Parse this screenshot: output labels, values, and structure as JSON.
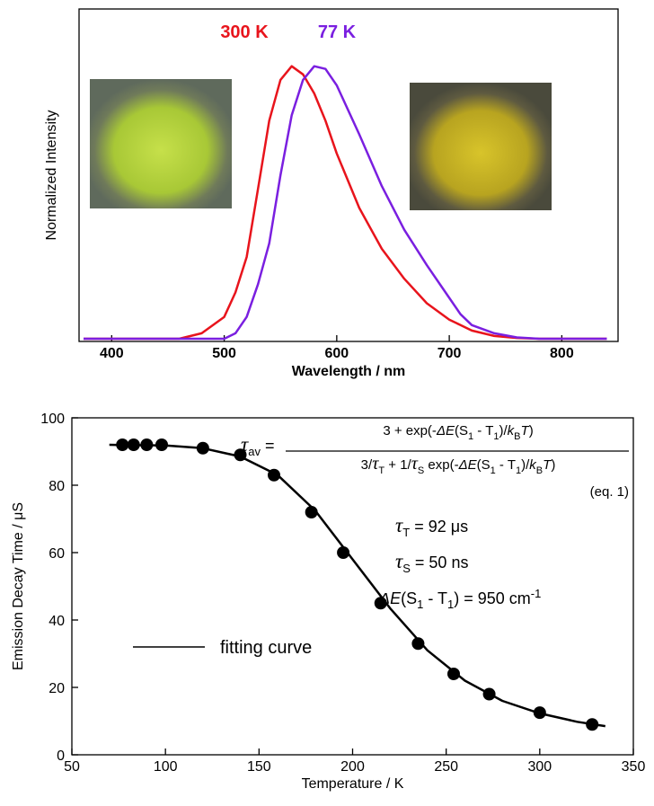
{
  "chart_data": [
    {
      "type": "line",
      "xlabel": "Wavelength / nm",
      "ylabel": "Normalized Intensity",
      "x": [
        375,
        460,
        480,
        500,
        510,
        520,
        530,
        540,
        550,
        560,
        570,
        580,
        590,
        600,
        620,
        640,
        660,
        680,
        700,
        710,
        720,
        740,
        760,
        780,
        800,
        840
      ],
      "series": [
        {
          "name": "300 K",
          "color": "#e8141c",
          "values": [
            0,
            0,
            0.02,
            0.08,
            0.17,
            0.3,
            0.55,
            0.8,
            0.95,
            1.0,
            0.97,
            0.9,
            0.8,
            0.68,
            0.48,
            0.33,
            0.22,
            0.13,
            0.07,
            0.05,
            0.03,
            0.01,
            0.003,
            0,
            0,
            0
          ]
        },
        {
          "name": "77 K",
          "color": "#7a1fe0",
          "values": [
            0,
            0,
            0,
            0,
            0.02,
            0.08,
            0.2,
            0.35,
            0.6,
            0.82,
            0.95,
            1.0,
            0.99,
            0.93,
            0.75,
            0.56,
            0.4,
            0.27,
            0.15,
            0.09,
            0.05,
            0.02,
            0.005,
            0,
            0,
            0
          ]
        }
      ],
      "xlim": [
        371,
        850
      ],
      "xticks": [
        400,
        500,
        600,
        700,
        800
      ],
      "ylim": [
        -0.01,
        1.21
      ]
    },
    {
      "type": "scatter",
      "xlabel": "Temperature / K",
      "ylabel": "Emission Decay Time / μS",
      "series": [
        {
          "marker": "circle",
          "color": "#000000",
          "x": [
            77,
            83,
            90,
            98,
            120,
            140,
            158,
            178,
            195,
            215,
            235,
            254,
            273,
            300,
            328
          ],
          "values": [
            92,
            92,
            92,
            92,
            91,
            89,
            83,
            72,
            60,
            45,
            33,
            24,
            18,
            12.5,
            9
          ]
        },
        {
          "name": "fitting curve",
          "marker": "line",
          "color": "#000000",
          "x": [
            70,
            100,
            120,
            140,
            160,
            180,
            200,
            220,
            240,
            260,
            280,
            300,
            320,
            335
          ],
          "values": [
            92,
            91.8,
            91,
            88.5,
            83,
            72.5,
            58,
            43.5,
            31,
            22,
            16,
            12.3,
            9.8,
            8.5
          ]
        }
      ],
      "xlim": [
        50,
        350
      ],
      "xticks": [
        50,
        100,
        150,
        200,
        250,
        300,
        350
      ],
      "ylim": [
        0,
        100
      ],
      "yticks": [
        0,
        20,
        40,
        60,
        80,
        100
      ],
      "annotations": [
        {
          "segments": [
            {
              "text": "τ",
              "style": "italic"
            },
            {
              "text": "av",
              "style": "sub"
            },
            {
              "text": " = ",
              "style": "normal"
            }
          ]
        },
        {
          "segments": [
            {
              "text": "3 + exp(-",
              "style": "normal"
            },
            {
              "text": "ΔE",
              "style": "italic"
            },
            {
              "text": "(S",
              "style": "normal"
            },
            {
              "text": "1",
              "style": "sub"
            },
            {
              "text": " - T",
              "style": "normal"
            },
            {
              "text": "1",
              "style": "sub"
            },
            {
              "text": ")/",
              "style": "normal"
            },
            {
              "text": "k",
              "style": "italic"
            },
            {
              "text": "B",
              "style": "sub"
            },
            {
              "text": "T",
              "style": "italic"
            },
            {
              "text": ")",
              "style": "normal"
            }
          ]
        },
        {
          "segments": [
            {
              "text": "3/",
              "style": "normal"
            },
            {
              "text": "τ",
              "style": "italic"
            },
            {
              "text": "T",
              "style": "sub"
            },
            {
              "text": " + 1/",
              "style": "normal"
            },
            {
              "text": "τ",
              "style": "italic"
            },
            {
              "text": "S",
              "style": "sub"
            },
            {
              "text": " exp(-",
              "style": "normal"
            },
            {
              "text": "ΔE",
              "style": "italic"
            },
            {
              "text": "(S",
              "style": "normal"
            },
            {
              "text": "1",
              "style": "sub"
            },
            {
              "text": " - T",
              "style": "normal"
            },
            {
              "text": "1",
              "style": "sub"
            },
            {
              "text": ")/",
              "style": "normal"
            },
            {
              "text": "k",
              "style": "italic"
            },
            {
              "text": "B",
              "style": "sub"
            },
            {
              "text": "T",
              "style": "italic"
            },
            {
              "text": ")",
              "style": "normal"
            }
          ]
        },
        {
          "segments": [
            {
              "text": "(eq. 1)",
              "style": "normal"
            }
          ]
        },
        {
          "segments": [
            {
              "text": "τ",
              "style": "italic"
            },
            {
              "text": "T",
              "style": "sub"
            },
            {
              "text": " = 92 μs",
              "style": "normal"
            }
          ]
        },
        {
          "segments": [
            {
              "text": "τ",
              "style": "italic"
            },
            {
              "text": "S",
              "style": "sub"
            },
            {
              "text": " = 50 ns",
              "style": "normal"
            }
          ]
        },
        {
          "segments": [
            {
              "text": "ΔE",
              "style": "italic"
            },
            {
              "text": "(S",
              "style": "normal"
            },
            {
              "text": "1",
              "style": "sub"
            },
            {
              "text": " - T",
              "style": "normal"
            },
            {
              "text": "1",
              "style": "sub"
            },
            {
              "text": ") = 950 cm",
              "style": "normal"
            },
            {
              "text": "-1",
              "style": "sup"
            }
          ]
        }
      ]
    }
  ]
}
